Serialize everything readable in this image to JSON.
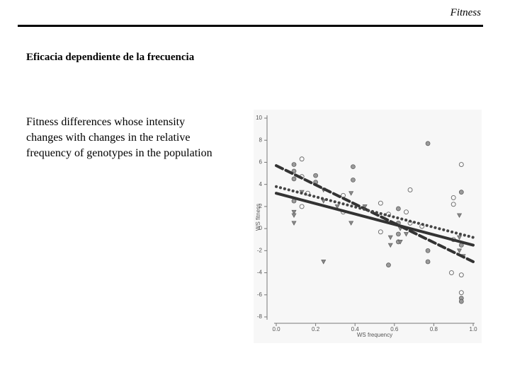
{
  "header": {
    "title": "Fitness"
  },
  "slide": {
    "title": "Eficacia dependiente de la frecuencia",
    "body": "Fitness differences whose intensity changes with changes in the relative frequency of genotypes in the population"
  },
  "chart_data": {
    "type": "scatter",
    "xlabel": "WS frequency",
    "ylabel": "WS fitness",
    "xlim": [
      0,
      1
    ],
    "ylim": [
      -8,
      10
    ],
    "xticks": [
      {
        "value": 0,
        "label": "0.0"
      },
      {
        "value": 0.2,
        "label": "0.2"
      },
      {
        "value": 0.4,
        "label": "0.4"
      },
      {
        "value": 0.6,
        "label": "0.6"
      },
      {
        "value": 0.8,
        "label": "0.8"
      },
      {
        "value": 1,
        "label": "1.0"
      }
    ],
    "yticks": [
      -8,
      -6,
      -4,
      -2,
      0,
      2,
      4,
      6,
      8,
      10
    ],
    "series": [
      {
        "mark": "circle-filled",
        "color": "#9a9a9a",
        "x": [
          0.09,
          0.09,
          0.09,
          0.09,
          0.2,
          0.2,
          0.39,
          0.39,
          0.57,
          0.62,
          0.62,
          0.62,
          0.77,
          0.77,
          0.94,
          0.94,
          0.94,
          0.94,
          0.62,
          0.77
        ],
        "values": [
          5.8,
          5.2,
          4.5,
          2.5,
          4.8,
          4.2,
          5.6,
          4.4,
          -3.3,
          1.8,
          0.5,
          -0.5,
          7.7,
          -3,
          3.3,
          -1.5,
          -6.3,
          -6.6,
          -1.2,
          -2
        ]
      },
      {
        "mark": "circle-open",
        "color": "#666666",
        "x": [
          0.13,
          0.13,
          0.13,
          0.16,
          0.34,
          0.34,
          0.53,
          0.53,
          0.68,
          0.68,
          0.74,
          0.9,
          0.9,
          0.9,
          0.89,
          0.94,
          0.94,
          0.94,
          0.57,
          0.66
        ],
        "values": [
          6.3,
          4.7,
          2,
          3.2,
          3,
          1.5,
          2.3,
          -0.3,
          3.5,
          0.5,
          0.2,
          2.2,
          2.8,
          -1,
          -4,
          5.8,
          -4.2,
          -5.8,
          1.3,
          1.5
        ]
      },
      {
        "mark": "triangle",
        "color": "#8a8a8a",
        "x": [
          0.09,
          0.09,
          0.13,
          0.24,
          0.24,
          0.24,
          0.31,
          0.38,
          0.38,
          0.45,
          0.58,
          0.58,
          0.63,
          0.63,
          0.93,
          0.93,
          0.93,
          0.95,
          0.09,
          0.66
        ],
        "values": [
          1.5,
          1.2,
          3.3,
          3.5,
          2.5,
          -3,
          2,
          0.5,
          3.2,
          2,
          -1.5,
          -0.8,
          -1.2,
          0,
          1.2,
          -0.8,
          -2,
          -2.5,
          0.5,
          -0.5
        ]
      },
      {
        "mark": "line-dashed",
        "color": "#333333",
        "x": [
          0,
          1
        ],
        "values": [
          5.7,
          -3
        ]
      },
      {
        "mark": "line-dotted",
        "color": "#444444",
        "x": [
          0,
          1
        ],
        "values": [
          3.8,
          -0.8
        ]
      },
      {
        "mark": "line-solid",
        "color": "#333333",
        "x": [
          0,
          1
        ],
        "values": [
          3.2,
          -1.5
        ]
      }
    ]
  }
}
